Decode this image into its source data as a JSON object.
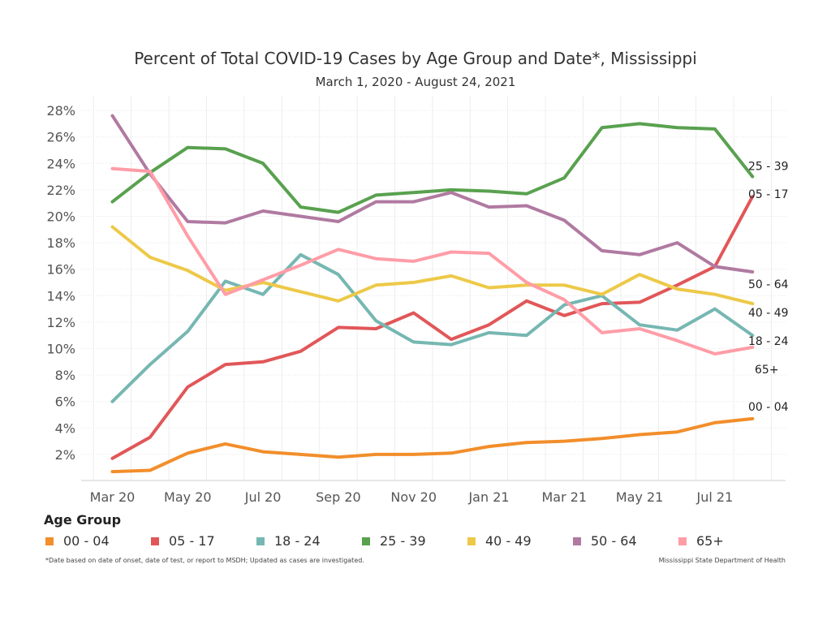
{
  "title": "Percent of Total COVID-19 Cases by Age Group and Date*, Mississippi",
  "subtitle": "March 1, 2020 - August 24, 2021",
  "legend_title": "Age Group",
  "footnote": "*Date based on date of onset, date of test, or report to MSDH; Updated as cases are investigated.",
  "source": "Mississippi State Department of Health",
  "chart_data": {
    "type": "line",
    "x": [
      "Mar 20",
      "Apr 20",
      "May 20",
      "Jun 20",
      "Jul 20",
      "Aug 20",
      "Sep 20",
      "Oct 20",
      "Nov 20",
      "Dec 20",
      "Jan 21",
      "Feb 21",
      "Mar 21",
      "Apr 21",
      "May 21",
      "Jun 21",
      "Jul 21",
      "Aug 21"
    ],
    "x_tick_labels": [
      "Mar 20",
      "May 20",
      "Jul 20",
      "Sep 20",
      "Nov 20",
      "Jan 21",
      "Mar 21",
      "May 21",
      "Jul 21"
    ],
    "y_tick_labels": [
      "2%",
      "4%",
      "6%",
      "8%",
      "10%",
      "12%",
      "14%",
      "16%",
      "18%",
      "20%",
      "22%",
      "24%",
      "26%",
      "28%"
    ],
    "ylim": [
      0,
      28.5
    ],
    "grid": true,
    "legend_position": "bottom",
    "series": [
      {
        "name": "00 - 04",
        "end_label": "00 - 04",
        "color": "#F28E2B",
        "values": [
          0.7,
          0.8,
          2.1,
          2.8,
          2.2,
          2.0,
          1.8,
          2.0,
          2.0,
          2.1,
          2.6,
          2.9,
          3.0,
          3.2,
          3.5,
          3.7,
          4.4,
          4.7
        ]
      },
      {
        "name": "05 - 17",
        "end_label": "05 - 17",
        "color": "#E15759",
        "values": [
          1.7,
          3.3,
          7.1,
          8.8,
          9.0,
          9.8,
          11.6,
          11.5,
          12.7,
          10.7,
          11.8,
          13.6,
          12.5,
          13.4,
          13.5,
          14.8,
          16.2,
          21.5
        ]
      },
      {
        "name": "18 - 24",
        "end_label": "18 - 24",
        "color": "#76B7B2",
        "values": [
          6.0,
          8.8,
          11.3,
          15.1,
          14.1,
          17.1,
          15.6,
          12.1,
          10.5,
          10.3,
          11.2,
          11.0,
          13.3,
          14.0,
          11.8,
          11.4,
          13.0,
          11.0
        ]
      },
      {
        "name": "25 - 39",
        "end_label": "25 - 39",
        "color": "#59A14F",
        "values": [
          21.1,
          23.3,
          25.2,
          25.1,
          24.0,
          20.7,
          20.3,
          21.6,
          21.8,
          22.0,
          21.9,
          21.7,
          22.9,
          26.7,
          27.0,
          26.7,
          26.6,
          23.0
        ]
      },
      {
        "name": "40 - 49",
        "end_label": "40 - 49",
        "color": "#EDC948",
        "values": [
          19.2,
          16.9,
          15.9,
          14.4,
          15.0,
          14.3,
          13.6,
          14.8,
          15.0,
          15.5,
          14.6,
          14.8,
          14.8,
          14.1,
          15.6,
          14.5,
          14.1,
          13.4
        ]
      },
      {
        "name": "50 - 64",
        "end_label": "50 - 64",
        "color": "#B07AA1",
        "values": [
          27.6,
          23.2,
          19.6,
          19.5,
          20.4,
          20.0,
          19.6,
          21.1,
          21.1,
          21.8,
          20.7,
          20.8,
          19.7,
          17.4,
          17.1,
          18.0,
          16.2,
          15.8
        ]
      },
      {
        "name": "65+",
        "end_label": "65+",
        "color": "#FF9DA7",
        "values": [
          23.6,
          23.4,
          18.5,
          14.1,
          15.2,
          16.3,
          17.5,
          16.8,
          16.6,
          17.3,
          17.2,
          15.0,
          13.7,
          11.2,
          11.5,
          10.6,
          9.6,
          10.1
        ]
      }
    ]
  }
}
